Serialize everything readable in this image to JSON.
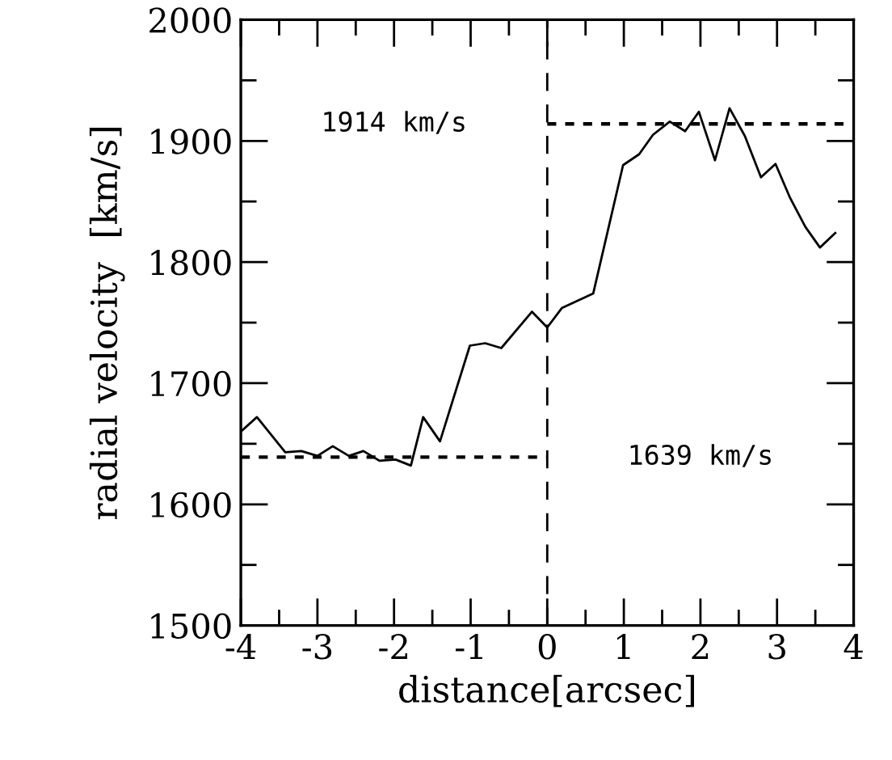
{
  "chart_data": {
    "type": "line",
    "xlabel": "distance[arcsec]",
    "ylabel": "radial velocity  [km/s]",
    "xlim": [
      -4,
      4
    ],
    "ylim": [
      1500,
      2000
    ],
    "xticks": [
      -4,
      {
        "value": -3.5,
        "label": null
      },
      -3,
      {
        "value": -2.5,
        "label": null
      },
      -2,
      {
        "value": -1.5,
        "label": null
      },
      -1,
      {
        "value": -0.5,
        "label": null
      },
      0,
      {
        "value": 0.5,
        "label": null
      },
      1,
      {
        "value": 1.5,
        "label": null
      },
      2,
      {
        "value": 2.5,
        "label": null
      },
      3,
      {
        "value": 3.5,
        "label": null
      },
      4
    ],
    "yticks": [
      1500,
      {
        "value": 1550,
        "label": null
      },
      1600,
      {
        "value": 1650,
        "label": null
      },
      1700,
      {
        "value": 1750,
        "label": null
      },
      1800,
      {
        "value": 1850,
        "label": null
      },
      1900,
      {
        "value": 1950,
        "label": null
      },
      2000
    ],
    "grid": false,
    "legend": false,
    "series": [
      {
        "color": "#000000",
        "line_style": "solid",
        "x": [
          -4,
          -3.79,
          -3.42,
          -3.21,
          -3.0,
          -2.8,
          -2.59,
          -2.4,
          -2.19,
          -1.98,
          -1.78,
          -1.62,
          -1.4,
          -1.01,
          -0.81,
          -0.6,
          -0.2,
          0.0,
          0.19,
          0.6,
          0.99,
          1.2,
          1.38,
          1.6,
          1.8,
          1.98,
          2.19,
          2.38,
          2.58,
          2.79,
          2.98,
          3.17,
          3.37,
          3.56,
          3.76
        ],
        "values": [
          1660,
          1672,
          1643,
          1644,
          1640,
          1648,
          1640,
          1644,
          1636,
          1637,
          1632,
          1672,
          1652,
          1731,
          1733,
          1729,
          1759,
          1746,
          1762,
          1774,
          1880,
          1889,
          1905,
          1916,
          1908,
          1924,
          1884,
          1927,
          1904,
          1870,
          1881,
          1853,
          1829,
          1812,
          1824
        ]
      },
      {
        "color": "#000000",
        "line_style": "dotted",
        "x": [
          0,
          4
        ],
        "values": [
          1914,
          1914
        ]
      },
      {
        "color": "#000000",
        "line_style": "dotted",
        "x": [
          -4,
          0
        ],
        "values": [
          1639,
          1639
        ]
      }
    ],
    "ref_lines": [
      {
        "axis": "x",
        "value": 0,
        "color": "#000000",
        "line_style": "dashed"
      }
    ],
    "annotations": [
      "1914 km/s",
      "1639 km/s"
    ]
  }
}
